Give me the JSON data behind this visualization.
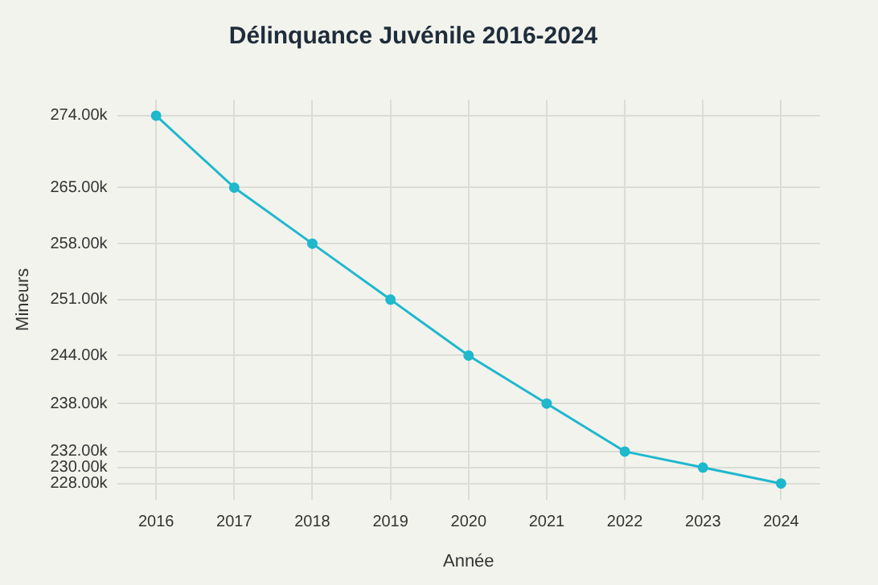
{
  "chart_data": {
    "type": "line",
    "title": "Délinquance Juvénile 2016-2024",
    "xlabel": "Année",
    "ylabel": "Mineurs",
    "categories": [
      "2016",
      "2017",
      "2018",
      "2019",
      "2020",
      "2021",
      "2022",
      "2023",
      "2024"
    ],
    "series": [
      {
        "color": "#1fb8cd",
        "values": [
          274000,
          265000,
          258000,
          251000,
          244000,
          238000,
          232000,
          230000,
          228000
        ]
      }
    ],
    "ylim": [
      226000,
      276000
    ],
    "yticks": [
      {
        "value": 228000,
        "label": "228.00k"
      },
      {
        "value": 230000,
        "label": "230.00k"
      },
      {
        "value": 232000,
        "label": "232.00k"
      },
      {
        "value": 238000,
        "label": "238.00k"
      },
      {
        "value": 244000,
        "label": "244.00k"
      },
      {
        "value": 251000,
        "label": "251.00k"
      },
      {
        "value": 258000,
        "label": "258.00k"
      },
      {
        "value": 265000,
        "label": "265.00k"
      },
      {
        "value": 274000,
        "label": "274.00k"
      }
    ],
    "grid": true,
    "marker": "circle",
    "line_style": "solid",
    "legend": false
  }
}
